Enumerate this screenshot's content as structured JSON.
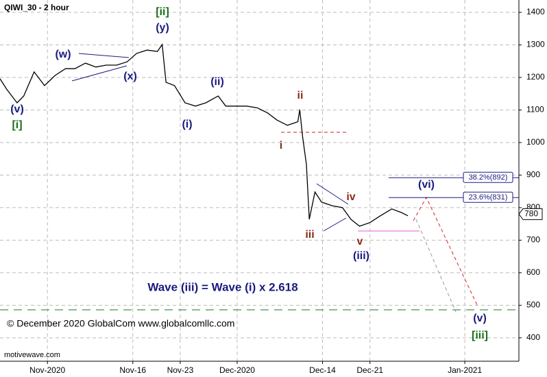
{
  "chart_data": {
    "type": "line",
    "title": "QIWI_30 - 2 hour",
    "annotation": "Wave (iii) = Wave (i) x 2.618",
    "copyright": "© December 2020 GlobalCom www.globalcomllc.com",
    "source": "motivewave.com",
    "color": "#000000",
    "x": [
      -3.0,
      -2.3,
      -1.2,
      -0.5,
      0.6,
      1.7,
      2.8,
      3.9,
      4.9,
      6.0,
      7.1,
      8.2,
      9.3,
      10.4,
      11.4,
      12.5,
      13.6,
      14.1,
      14.5,
      15.4,
      16.5,
      17.6,
      18.7,
      20.0,
      20.8,
      21.9,
      23.0,
      24.1,
      25.2,
      26.2,
      27.3,
      28.4,
      28.6,
      28.9,
      29.3,
      29.6,
      30.2,
      30.9,
      32.0,
      33.1,
      34.0,
      34.9,
      36.0,
      37.1,
      38.3,
      39.3,
      40.0
    ],
    "values": [
      1196,
      1164,
      1122,
      1143,
      1217,
      1175,
      1206,
      1227,
      1227,
      1244,
      1232,
      1238,
      1238,
      1248,
      1274,
      1284,
      1280,
      1301,
      1185,
      1175,
      1122,
      1112,
      1122,
      1143,
      1112,
      1112,
      1112,
      1107,
      1091,
      1069,
      1053,
      1064,
      1101,
      1017,
      933,
      764,
      848,
      817,
      806,
      800,
      764,
      743,
      754,
      775,
      796,
      785,
      775
    ],
    "xlim": [
      -3.0,
      51.7
    ],
    "xticks": [
      {
        "value": 2,
        "label": "Nov-2020"
      },
      {
        "value": 11,
        "label": "Nov-16"
      },
      {
        "value": 16,
        "label": "Nov-23"
      },
      {
        "value": 22,
        "label": "Dec-2020"
      },
      {
        "value": 31,
        "label": "Dec-14"
      },
      {
        "value": 36,
        "label": "Dec-21"
      },
      {
        "value": 46,
        "label": "Jan-2021"
      }
    ],
    "ylim": [
      328,
      1438
    ],
    "yticks": [
      400,
      500,
      600,
      700,
      800,
      900,
      1000,
      1100,
      1200,
      1300,
      1400
    ],
    "grid": true,
    "last_price": 780,
    "levels": [
      {
        "value": 892,
        "label": "38.2%(892)"
      },
      {
        "value": 831,
        "label": "23.6%(831)"
      }
    ],
    "wave_labels": [
      {
        "text": "(v)",
        "color": "#1a1a80"
      },
      {
        "text": "[i]",
        "color": "#1a6e1a"
      },
      {
        "text": "(w)",
        "color": "#1a1a80"
      },
      {
        "text": "(x)",
        "color": "#1a1a80"
      },
      {
        "text": "[ii]",
        "color": "#1a6e1a"
      },
      {
        "text": "(y)",
        "color": "#1a1a80"
      },
      {
        "text": "(ii)",
        "color": "#1a1a80"
      },
      {
        "text": "(i)",
        "color": "#1a1a80"
      },
      {
        "text": "ii",
        "color": "#8b2a1a"
      },
      {
        "text": "i",
        "color": "#8b2a1a"
      },
      {
        "text": "iii",
        "color": "#8b2a1a"
      },
      {
        "text": "iv",
        "color": "#8b2a1a"
      },
      {
        "text": "v",
        "color": "#8b2a1a"
      },
      {
        "text": "(iii)",
        "color": "#1a1a80"
      },
      {
        "text": "(vi)",
        "color": "#1a1a80"
      },
      {
        "text": "(v)",
        "color": "#1a1a80"
      },
      {
        "text": "[iii]",
        "color": "#1a6e1a"
      }
    ]
  }
}
